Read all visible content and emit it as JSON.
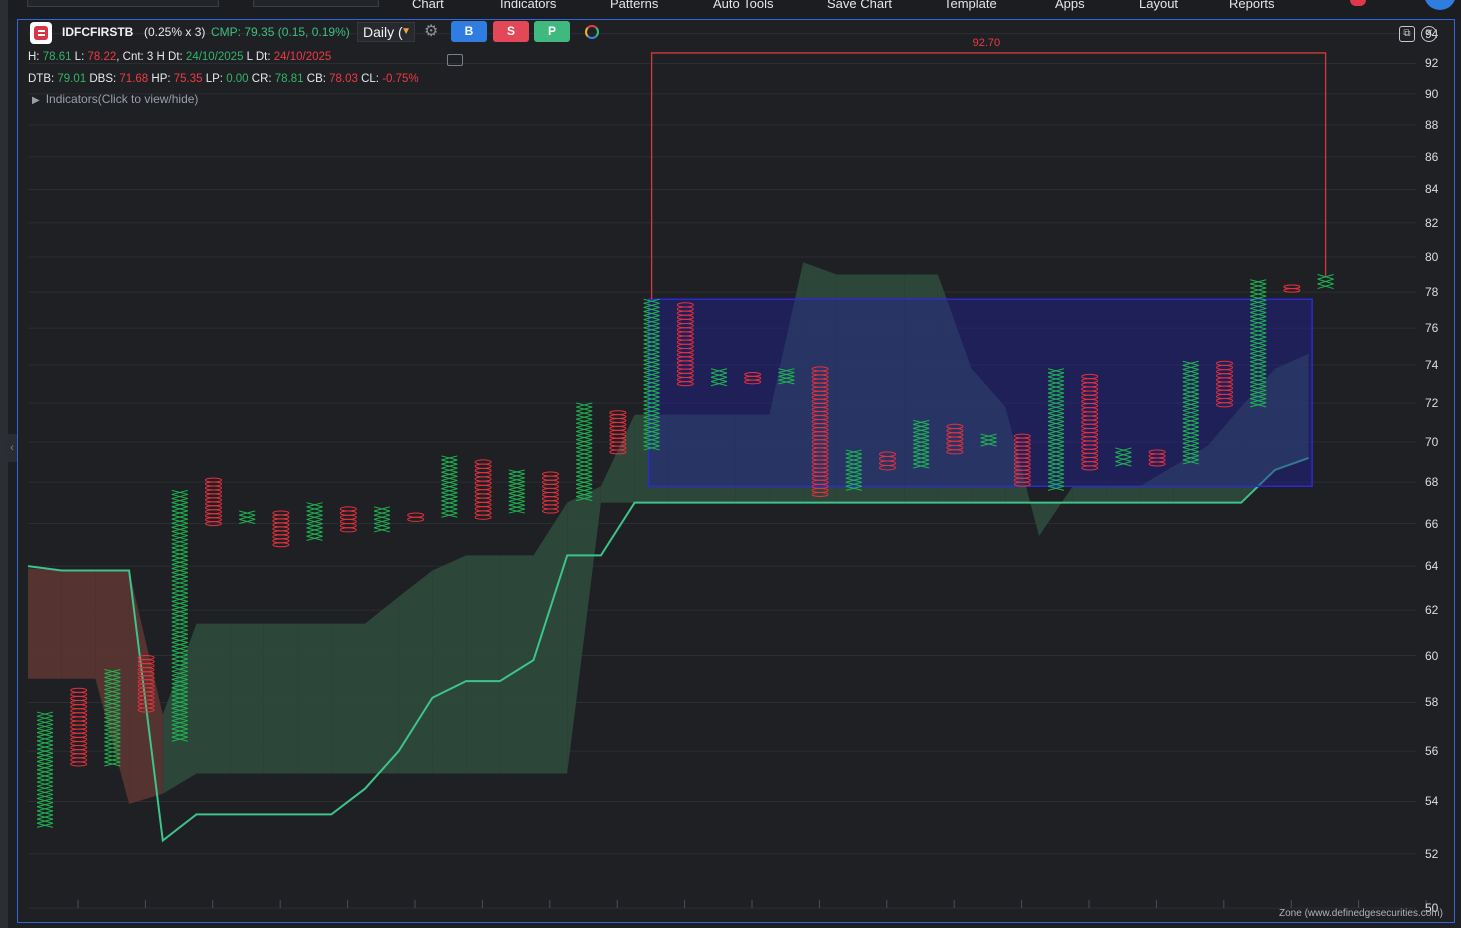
{
  "menu": [
    "Chart",
    "Indicators",
    "Patterns",
    "Auto Tools",
    "Save Chart",
    "Template",
    "Apps",
    "Layout",
    "Reports"
  ],
  "header": {
    "symbol": "IDFCFIRSTB",
    "box": "(0.25% x 3)",
    "cmp": "CMP: 79.35 (0.15, 0.19%)",
    "timeframe": "Daily (",
    "buttons": [
      "B",
      "S",
      "P"
    ],
    "button_colors": [
      "#2f7de1",
      "#e24857",
      "#3fb97f"
    ]
  },
  "info_row1": [
    {
      "t": "H: ",
      "c": ""
    },
    {
      "t": "78.61",
      "c": "g"
    },
    {
      "t": " L: ",
      "c": ""
    },
    {
      "t": "78.22",
      "c": "r"
    },
    {
      "t": ", Cnt: 3 H Dt: ",
      "c": ""
    },
    {
      "t": "24/10/2025",
      "c": "g"
    },
    {
      "t": " L Dt: ",
      "c": ""
    },
    {
      "t": "24/10/2025",
      "c": "r"
    }
  ],
  "info_row2": [
    {
      "t": "DTB: ",
      "c": ""
    },
    {
      "t": "79.01",
      "c": "g"
    },
    {
      "t": " DBS: ",
      "c": ""
    },
    {
      "t": "71.68",
      "c": "r"
    },
    {
      "t": " HP: ",
      "c": ""
    },
    {
      "t": "75.35",
      "c": "r"
    },
    {
      "t": " LP: ",
      "c": ""
    },
    {
      "t": "0.00",
      "c": "g"
    },
    {
      "t": " CR: ",
      "c": ""
    },
    {
      "t": "78.81",
      "c": "g"
    },
    {
      "t": " CB: ",
      "c": ""
    },
    {
      "t": "78.03",
      "c": "r"
    },
    {
      "t": " CL: ",
      "c": ""
    },
    {
      "t": "-0.75%",
      "c": "r"
    }
  ],
  "indicators_toggle": "Indicators(Click to view/hide)",
  "zone_label": "Zone (www.definedgesecurities.com)",
  "target_label": "92.70",
  "colors": {
    "x_col": "#1fb351",
    "o_col": "#e8303d",
    "cloud_green": "#2d4a3c",
    "cloud_red": "#5a3533",
    "line": "#3cc48a",
    "zone_box": "#2a2bd0",
    "target": "#d23a3a"
  },
  "chart_data": {
    "type": "point-and-figure",
    "y_ticks": [
      50,
      52,
      54,
      56,
      58,
      60,
      62,
      64,
      66,
      68,
      70,
      72,
      74,
      76,
      78,
      80,
      82,
      84,
      86,
      88,
      90,
      92,
      94
    ],
    "ylim": [
      49.5,
      95
    ],
    "log_scale": true,
    "columns": [
      {
        "type": "X",
        "low": 53.0,
        "high": 57.6
      },
      {
        "type": "O",
        "low": 55.4,
        "high": 58.6
      },
      {
        "type": "X",
        "low": 55.4,
        "high": 59.4
      },
      {
        "type": "O",
        "low": 57.6,
        "high": 60.0
      },
      {
        "type": "X",
        "low": 56.4,
        "high": 67.6
      },
      {
        "type": "O",
        "low": 65.9,
        "high": 68.2
      },
      {
        "type": "X",
        "low": 66.0,
        "high": 66.6
      },
      {
        "type": "O",
        "low": 64.9,
        "high": 66.6
      },
      {
        "type": "X",
        "low": 65.2,
        "high": 67.0
      },
      {
        "type": "O",
        "low": 65.6,
        "high": 66.8
      },
      {
        "type": "X",
        "low": 65.6,
        "high": 66.8
      },
      {
        "type": "O",
        "low": 66.1,
        "high": 66.5
      },
      {
        "type": "X",
        "low": 66.3,
        "high": 69.3
      },
      {
        "type": "O",
        "low": 66.2,
        "high": 69.1
      },
      {
        "type": "X",
        "low": 66.5,
        "high": 68.6
      },
      {
        "type": "O",
        "low": 66.5,
        "high": 68.5
      },
      {
        "type": "X",
        "low": 67.1,
        "high": 72.0
      },
      {
        "type": "O",
        "low": 69.4,
        "high": 71.6
      },
      {
        "type": "X",
        "low": 69.6,
        "high": 77.6
      },
      {
        "type": "O",
        "low": 72.9,
        "high": 77.4
      },
      {
        "type": "X",
        "low": 72.9,
        "high": 73.8
      },
      {
        "type": "O",
        "low": 73.0,
        "high": 73.6
      },
      {
        "type": "X",
        "low": 73.0,
        "high": 73.8
      },
      {
        "type": "O",
        "low": 67.3,
        "high": 73.9
      },
      {
        "type": "X",
        "low": 67.6,
        "high": 69.6
      },
      {
        "type": "O",
        "low": 68.6,
        "high": 69.5
      },
      {
        "type": "X",
        "low": 68.7,
        "high": 71.1
      },
      {
        "type": "O",
        "low": 69.4,
        "high": 70.9
      },
      {
        "type": "X",
        "low": 69.8,
        "high": 70.4
      },
      {
        "type": "O",
        "low": 67.8,
        "high": 70.4
      },
      {
        "type": "X",
        "low": 67.6,
        "high": 73.8
      },
      {
        "type": "O",
        "low": 68.6,
        "high": 73.5
      },
      {
        "type": "X",
        "low": 68.8,
        "high": 69.7
      },
      {
        "type": "O",
        "low": 68.8,
        "high": 69.6
      },
      {
        "type": "X",
        "low": 68.9,
        "high": 74.2
      },
      {
        "type": "O",
        "low": 71.8,
        "high": 74.2
      },
      {
        "type": "X",
        "low": 71.8,
        "high": 78.7
      },
      {
        "type": "O",
        "low": 78.0,
        "high": 78.4
      },
      {
        "type": "X",
        "low": 78.2,
        "high": 79.0
      }
    ],
    "cloud": {
      "span_a": [
        63.9,
        63.8,
        63.8,
        63.8,
        57.5,
        61.4,
        61.4,
        61.4,
        61.4,
        61.4,
        61.4,
        62.6,
        63.8,
        64.5,
        64.5,
        64.5,
        67.0,
        67.8,
        71.4,
        71.4,
        71.4,
        71.4,
        71.4,
        79.7,
        79.0,
        79.0,
        79.0,
        79.0,
        73.8,
        71.8,
        65.4,
        67.8,
        67.8,
        67.8,
        68.8,
        69.8,
        71.8,
        73.8,
        74.6
      ],
      "span_b": [
        59.0,
        59.0,
        59.0,
        53.9,
        54.3,
        55.1,
        55.1,
        55.1,
        55.1,
        55.1,
        55.1,
        55.1,
        55.1,
        55.1,
        55.1,
        55.1,
        55.1,
        67.0,
        67.0,
        67.0,
        67.0,
        67.0,
        67.0,
        67.0,
        67.0,
        67.0,
        67.0,
        67.0,
        67.0,
        67.0,
        67.0,
        67.0,
        67.0,
        67.0,
        67.0,
        67.0,
        67.0,
        68.6,
        69.2
      ]
    },
    "base_line": [
      64.0,
      63.8,
      63.8,
      63.8,
      52.5,
      53.5,
      53.5,
      53.5,
      53.5,
      53.5,
      54.5,
      56.0,
      58.2,
      58.9,
      58.9,
      59.8,
      64.5,
      64.5,
      67.0,
      67.0,
      67.0,
      67.0,
      67.0,
      67.0,
      67.0,
      67.0,
      67.0,
      67.0,
      67.0,
      67.0,
      67.0,
      67.0,
      67.0,
      67.0,
      67.0,
      67.0,
      67.0,
      68.6,
      69.2
    ],
    "zone_box": {
      "col_start": 18,
      "col_end": 37.6,
      "low": 67.8,
      "high": 77.6
    },
    "target": {
      "col_start": 18,
      "col_end": 38,
      "value": 92.7,
      "base": 77.6
    }
  }
}
